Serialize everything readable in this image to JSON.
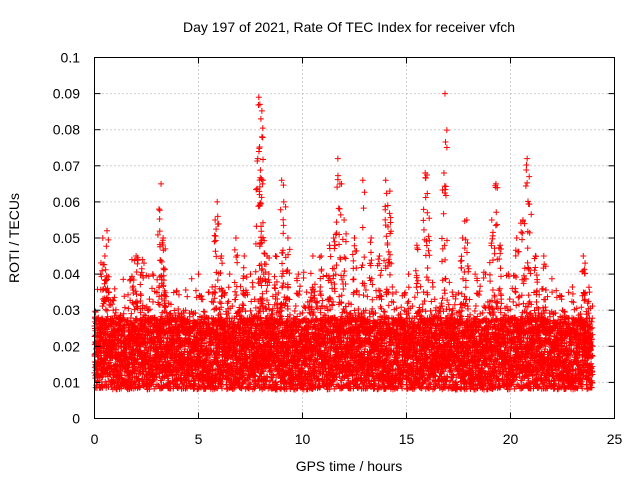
{
  "chart_data": {
    "type": "scatter",
    "title": "Day 197 of 2021, Rate Of TEC Index for receiver vfch",
    "xlabel": "GPS time / hours",
    "ylabel": "ROTI / TECUs",
    "xlim": [
      0,
      25
    ],
    "ylim": [
      0,
      0.1
    ],
    "xticks": [
      "0",
      "5",
      "10",
      "15",
      "20",
      "25"
    ],
    "yticks": [
      "0",
      "0.01",
      "0.02",
      "0.03",
      "0.04",
      "0.05",
      "0.06",
      "0.07",
      "0.08",
      "0.09",
      "0.1"
    ],
    "grid": true,
    "marker": "+",
    "color": "#ff0000",
    "series": [
      {
        "name": "ROTI",
        "note": "dense cloud of points roughly 0.005-0.035 from 0 to 24 h with spikes; representative sample",
        "points": [
          [
            0.05,
            0.018
          ],
          [
            0.2,
            0.025
          ],
          [
            0.3,
            0.04
          ],
          [
            0.4,
            0.05
          ],
          [
            0.5,
            0.045
          ],
          [
            0.6,
            0.052
          ],
          [
            0.7,
            0.035
          ],
          [
            0.9,
            0.03
          ],
          [
            1.2,
            0.028
          ],
          [
            1.5,
            0.022
          ],
          [
            1.8,
            0.044
          ],
          [
            2.0,
            0.045
          ],
          [
            2.3,
            0.044
          ],
          [
            2.6,
            0.03
          ],
          [
            2.8,
            0.04
          ],
          [
            3.0,
            0.035
          ],
          [
            3.1,
            0.058
          ],
          [
            3.2,
            0.065
          ],
          [
            3.3,
            0.05
          ],
          [
            3.4,
            0.047
          ],
          [
            3.6,
            0.026
          ],
          [
            4.0,
            0.022
          ],
          [
            4.5,
            0.02
          ],
          [
            5.0,
            0.04
          ],
          [
            5.2,
            0.033
          ],
          [
            5.5,
            0.035
          ],
          [
            5.8,
            0.055
          ],
          [
            5.9,
            0.06
          ],
          [
            6.1,
            0.045
          ],
          [
            6.5,
            0.04
          ],
          [
            6.8,
            0.05
          ],
          [
            7.2,
            0.045
          ],
          [
            7.5,
            0.04
          ],
          [
            7.9,
            0.089
          ],
          [
            7.95,
            0.087
          ],
          [
            8.0,
            0.083
          ],
          [
            8.05,
            0.078
          ],
          [
            7.85,
            0.072
          ],
          [
            8.1,
            0.066
          ],
          [
            8.3,
            0.045
          ],
          [
            8.7,
            0.045
          ],
          [
            9.0,
            0.066
          ],
          [
            9.1,
            0.06
          ],
          [
            9.3,
            0.05
          ],
          [
            9.8,
            0.04
          ],
          [
            10.2,
            0.035
          ],
          [
            10.5,
            0.045
          ],
          [
            10.9,
            0.045
          ],
          [
            11.3,
            0.048
          ],
          [
            11.5,
            0.05
          ],
          [
            11.7,
            0.072
          ],
          [
            11.8,
            0.065
          ],
          [
            12.0,
            0.055
          ],
          [
            12.5,
            0.05
          ],
          [
            12.9,
            0.066
          ],
          [
            13.3,
            0.05
          ],
          [
            13.7,
            0.045
          ],
          [
            14.0,
            0.066
          ],
          [
            14.1,
            0.059
          ],
          [
            14.2,
            0.063
          ],
          [
            14.5,
            0.035
          ],
          [
            14.9,
            0.03
          ],
          [
            15.1,
            0.04
          ],
          [
            15.5,
            0.048
          ],
          [
            15.9,
            0.068
          ],
          [
            16.0,
            0.057
          ],
          [
            16.4,
            0.03
          ],
          [
            16.8,
            0.068
          ],
          [
            16.85,
            0.09
          ],
          [
            17.2,
            0.035
          ],
          [
            17.7,
            0.05
          ],
          [
            17.9,
            0.055
          ],
          [
            18.3,
            0.04
          ],
          [
            18.8,
            0.04
          ],
          [
            19.1,
            0.055
          ],
          [
            19.3,
            0.065
          ],
          [
            19.5,
            0.048
          ],
          [
            19.9,
            0.04
          ],
          [
            20.3,
            0.05
          ],
          [
            20.6,
            0.055
          ],
          [
            20.8,
            0.072
          ],
          [
            20.9,
            0.067
          ],
          [
            21.2,
            0.045
          ],
          [
            21.6,
            0.045
          ],
          [
            22.0,
            0.035
          ],
          [
            22.5,
            0.03
          ],
          [
            23.0,
            0.025
          ],
          [
            23.5,
            0.045
          ],
          [
            23.8,
            0.035
          ],
          [
            23.95,
            0.02
          ]
        ]
      }
    ]
  }
}
